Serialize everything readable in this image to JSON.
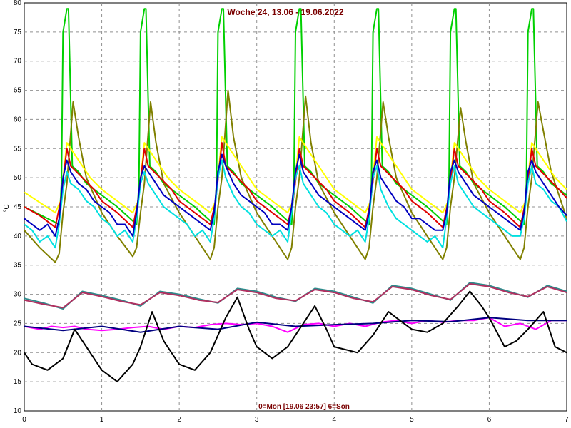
{
  "chart_data": {
    "type": "line",
    "title": "Woche 24, 13.06 - 19.06.2022",
    "xlabel": "0=Mon [19.06 23:57] 6=Son",
    "ylabel": "°C",
    "xlim": [
      0,
      7
    ],
    "ylim": [
      10,
      80
    ],
    "xticks": [
      "0",
      "1",
      "2",
      "3",
      "4",
      "5",
      "6",
      "7"
    ],
    "yticks": [
      "10",
      "15",
      "20",
      "25",
      "30",
      "35",
      "40",
      "45",
      "50",
      "55",
      "60",
      "65",
      "70",
      "75",
      "80"
    ],
    "grid": true,
    "series": [
      {
        "color": "#00d000",
        "x": [
          0,
          0.45,
          0.48,
          0.5,
          0.55,
          0.57,
          0.62,
          0.7,
          0.8,
          1.0,
          1.2,
          1.45,
          1.48,
          1.5,
          1.55,
          1.57,
          1.62,
          1.7,
          1.8,
          2.0,
          2.2,
          2.45,
          2.48,
          2.5,
          2.55,
          2.57,
          2.62,
          2.7,
          2.8,
          3.0,
          3.2,
          3.45,
          3.48,
          3.5,
          3.55,
          3.57,
          3.62,
          3.7,
          3.8,
          4.0,
          4.2,
          4.45,
          4.48,
          4.5,
          4.55,
          4.57,
          4.62,
          4.7,
          4.8,
          5.0,
          5.2,
          5.45,
          5.48,
          5.5,
          5.55,
          5.57,
          5.62,
          5.7,
          5.8,
          6.0,
          6.2,
          6.45,
          6.48,
          6.5,
          6.55,
          6.57,
          6.62,
          6.7,
          6.8,
          7.0
        ],
        "y": [
          45,
          42,
          49,
          75,
          79,
          79,
          52,
          51,
          49,
          47,
          45,
          42,
          49,
          75,
          79,
          79,
          52,
          51,
          49,
          47,
          45,
          42,
          49,
          75,
          79,
          79,
          52,
          51,
          49,
          47,
          45,
          42,
          49,
          75,
          79,
          79,
          52,
          51,
          49,
          47,
          45,
          42,
          49,
          75,
          79,
          79,
          52,
          51,
          49,
          47,
          45,
          42,
          49,
          75,
          79,
          79,
          52,
          51,
          49,
          47,
          45,
          42,
          49,
          75,
          79,
          79,
          52,
          51,
          49,
          47
        ]
      },
      {
        "color": "#808000",
        "x": [
          0,
          0.2,
          0.4,
          0.45,
          0.5,
          0.55,
          0.63,
          0.7,
          0.8,
          1.0,
          1.2,
          1.4,
          1.45,
          1.5,
          1.55,
          1.63,
          1.7,
          1.8,
          2.0,
          2.2,
          2.4,
          2.45,
          2.5,
          2.55,
          2.63,
          2.7,
          2.8,
          3.0,
          3.2,
          3.4,
          3.45,
          3.5,
          3.55,
          3.63,
          3.7,
          3.8,
          4.0,
          4.2,
          4.4,
          4.45,
          4.5,
          4.55,
          4.63,
          4.7,
          4.8,
          5.0,
          5.2,
          5.4,
          5.45,
          5.5,
          5.55,
          5.63,
          5.7,
          5.8,
          6.0,
          6.2,
          6.4,
          6.45,
          6.5,
          6.55,
          6.63,
          6.7,
          6.8,
          7.0
        ],
        "y": [
          41,
          38,
          35.5,
          37,
          44,
          49,
          63,
          57,
          50,
          44,
          40,
          36.5,
          38,
          44,
          49,
          63,
          56,
          49,
          44,
          40,
          36,
          38,
          45,
          50,
          65,
          57,
          50,
          44,
          40,
          36,
          38,
          45,
          50,
          64,
          56,
          49,
          44,
          40,
          36,
          38,
          45,
          50,
          63,
          57,
          50,
          44,
          40,
          36,
          38,
          45,
          50,
          62,
          56,
          49,
          44,
          40,
          36,
          38,
          45,
          50,
          63,
          58,
          51,
          43
        ]
      },
      {
        "color": "#ffff00",
        "x": [
          0,
          0.4,
          0.47,
          0.55,
          0.7,
          0.85,
          1.0,
          1.2,
          1.4,
          1.47,
          1.55,
          1.7,
          1.85,
          2.0,
          2.2,
          2.4,
          2.47,
          2.55,
          2.7,
          2.85,
          3.0,
          3.2,
          3.4,
          3.47,
          3.55,
          3.7,
          3.85,
          4.0,
          4.2,
          4.4,
          4.47,
          4.55,
          4.7,
          4.85,
          5.0,
          5.2,
          5.4,
          5.47,
          5.55,
          5.7,
          5.85,
          6.0,
          6.2,
          6.4,
          6.47,
          6.55,
          6.7,
          6.85,
          7.0
        ],
        "y": [
          47.5,
          44,
          46,
          56,
          53,
          50,
          48,
          46,
          44,
          46,
          56,
          53,
          50,
          48,
          46,
          44,
          46,
          57,
          54,
          51,
          48,
          46,
          44,
          46,
          57,
          54,
          51,
          48,
          46,
          44,
          46,
          57,
          54,
          51,
          48,
          46,
          44,
          46,
          56,
          53,
          50,
          48,
          46,
          44,
          46,
          56,
          53,
          50,
          48
        ]
      },
      {
        "color": "#e00000",
        "x": [
          0,
          0.2,
          0.4,
          0.47,
          0.55,
          0.6,
          0.75,
          0.9,
          1.0,
          1.2,
          1.4,
          1.47,
          1.55,
          1.6,
          1.75,
          1.9,
          2.0,
          2.2,
          2.4,
          2.47,
          2.55,
          2.6,
          2.75,
          2.9,
          3.0,
          3.2,
          3.4,
          3.47,
          3.55,
          3.6,
          3.75,
          3.9,
          4.0,
          4.2,
          4.4,
          4.47,
          4.55,
          4.6,
          4.75,
          4.9,
          5.0,
          5.2,
          5.4,
          5.47,
          5.55,
          5.6,
          5.75,
          5.9,
          6.0,
          6.2,
          6.4,
          6.47,
          6.55,
          6.6,
          6.75,
          6.9,
          7.0
        ],
        "y": [
          45,
          43.5,
          41.5,
          46,
          55,
          52,
          50,
          48,
          46,
          44,
          41.5,
          46,
          55,
          52,
          50,
          48,
          46,
          44,
          42,
          46,
          56,
          52,
          50,
          48,
          46,
          44,
          42,
          46,
          55,
          52,
          50,
          48,
          46,
          44,
          41.5,
          46,
          55,
          52,
          50,
          48,
          46,
          44,
          41.5,
          46,
          55,
          52,
          50,
          48,
          46,
          44,
          41.5,
          46,
          55,
          52,
          50,
          48,
          46.5
        ]
      },
      {
        "color": "#00e0e0",
        "x": [
          0,
          0.1,
          0.2,
          0.3,
          0.4,
          0.45,
          0.5,
          0.55,
          0.6,
          0.7,
          0.8,
          0.9,
          1.0,
          1.1,
          1.2,
          1.3,
          1.4,
          1.45,
          1.5,
          1.55,
          1.6,
          1.7,
          1.8,
          1.9,
          2.0,
          2.1,
          2.2,
          2.3,
          2.4,
          2.45,
          2.5,
          2.55,
          2.6,
          2.7,
          2.8,
          2.9,
          3.0,
          3.1,
          3.2,
          3.3,
          3.4,
          3.45,
          3.5,
          3.55,
          3.6,
          3.7,
          3.8,
          3.9,
          4.0,
          4.1,
          4.2,
          4.3,
          4.4,
          4.45,
          4.5,
          4.55,
          4.6,
          4.7,
          4.8,
          4.9,
          5.0,
          5.1,
          5.2,
          5.3,
          5.4,
          5.45,
          5.5,
          5.55,
          5.6,
          5.7,
          5.8,
          5.9,
          6.0,
          6.1,
          6.2,
          6.3,
          6.4,
          6.45,
          6.5,
          6.55,
          6.6,
          6.7,
          6.8,
          6.9,
          7.0
        ],
        "y": [
          42,
          41,
          39,
          40,
          38,
          42,
          48,
          51,
          49,
          48,
          46,
          45,
          43,
          42,
          40,
          41,
          39,
          43,
          49,
          51,
          49,
          47,
          45,
          44,
          43,
          42,
          40,
          41,
          39,
          43,
          50,
          53,
          50,
          47,
          45,
          44,
          42,
          41,
          40,
          41,
          39,
          44,
          50,
          52,
          49,
          47,
          45,
          44,
          42,
          41,
          40,
          41,
          39,
          43,
          50,
          52,
          48,
          45,
          43,
          42,
          41,
          40,
          39,
          40,
          38,
          43,
          49,
          52,
          49,
          47,
          45,
          44,
          43,
          42,
          41,
          40,
          40,
          43,
          49,
          52,
          49,
          48,
          46,
          45,
          42.5
        ]
      },
      {
        "color": "#0000c0",
        "x": [
          0,
          0.1,
          0.2,
          0.3,
          0.4,
          0.45,
          0.5,
          0.55,
          0.6,
          0.7,
          0.8,
          0.9,
          1.0,
          1.1,
          1.2,
          1.3,
          1.4,
          1.45,
          1.5,
          1.55,
          1.6,
          1.7,
          1.8,
          1.9,
          2.0,
          2.1,
          2.2,
          2.3,
          2.4,
          2.45,
          2.5,
          2.55,
          2.6,
          2.7,
          2.8,
          2.9,
          3.0,
          3.1,
          3.2,
          3.3,
          3.4,
          3.45,
          3.5,
          3.55,
          3.6,
          3.7,
          3.8,
          3.9,
          4.0,
          4.1,
          4.2,
          4.3,
          4.4,
          4.45,
          4.5,
          4.55,
          4.6,
          4.7,
          4.8,
          4.9,
          5.0,
          5.1,
          5.2,
          5.3,
          5.4,
          5.45,
          5.5,
          5.55,
          5.6,
          5.7,
          5.8,
          5.9,
          6.0,
          6.1,
          6.2,
          6.3,
          6.4,
          6.45,
          6.5,
          6.55,
          6.6,
          6.7,
          6.8,
          6.9,
          7.0
        ],
        "y": [
          43,
          42,
          41,
          42,
          40,
          43,
          50,
          53,
          51,
          49,
          48,
          46,
          45,
          44,
          42,
          42,
          40,
          44,
          50,
          52,
          51,
          49,
          47,
          46,
          45,
          44,
          43,
          42,
          41,
          44,
          51,
          54,
          52,
          49,
          47,
          46,
          45,
          44,
          42,
          42,
          41,
          45,
          51,
          54,
          51,
          49,
          47,
          46,
          45,
          44,
          43,
          42,
          41,
          44,
          51,
          53,
          50,
          48,
          46,
          45,
          43,
          43,
          42,
          41,
          41,
          44,
          51,
          53,
          51,
          49,
          47,
          46,
          45,
          44,
          43,
          42,
          41,
          44,
          51,
          53,
          51,
          49,
          47,
          45,
          43.5
        ]
      },
      {
        "color": "#2e8b8b",
        "x": [
          0,
          0.25,
          0.5,
          0.75,
          1.0,
          1.25,
          1.5,
          1.75,
          2.0,
          2.25,
          2.5,
          2.75,
          3.0,
          3.25,
          3.5,
          3.75,
          4.0,
          4.25,
          4.5,
          4.75,
          5.0,
          5.25,
          5.5,
          5.75,
          6.0,
          6.25,
          6.5,
          6.75,
          7.0
        ],
        "y": [
          29.3,
          28.5,
          27.5,
          30.5,
          29.8,
          29,
          28,
          30.5,
          30,
          29.2,
          28.5,
          31,
          30.5,
          29.5,
          28.8,
          31,
          30.5,
          29.5,
          28.5,
          31.5,
          31,
          30,
          29,
          32,
          31.5,
          30.5,
          29.5,
          31.5,
          30.5
        ]
      },
      {
        "color": "#b03060",
        "x": [
          0,
          0.25,
          0.5,
          0.75,
          1.0,
          1.25,
          1.5,
          1.75,
          2.0,
          2.25,
          2.5,
          2.75,
          3.0,
          3.25,
          3.5,
          3.75,
          4.0,
          4.25,
          4.5,
          4.75,
          5.0,
          5.25,
          5.5,
          5.75,
          6.0,
          6.25,
          6.5,
          6.75,
          7.0
        ],
        "y": [
          29,
          28.3,
          27.7,
          30.3,
          29.6,
          28.8,
          28.2,
          30.3,
          29.8,
          29,
          28.6,
          30.8,
          30.3,
          29.3,
          28.9,
          30.8,
          30.3,
          29.3,
          28.7,
          31.3,
          30.8,
          29.8,
          29.1,
          31.8,
          31.3,
          30.3,
          29.6,
          31.3,
          30.3
        ]
      },
      {
        "color": "#ff00ff",
        "x": [
          0,
          0.2,
          0.35,
          0.5,
          0.65,
          0.8,
          1.0,
          1.2,
          1.4,
          1.6,
          1.8,
          2.0,
          2.2,
          2.4,
          2.6,
          2.8,
          3.0,
          3.2,
          3.4,
          3.6,
          3.8,
          4.0,
          4.2,
          4.4,
          4.6,
          4.8,
          5.0,
          5.2,
          5.4,
          5.6,
          5.8,
          6.0,
          6.2,
          6.4,
          6.6,
          6.8,
          7.0
        ],
        "y": [
          24.5,
          24,
          24.5,
          24.3,
          24.5,
          24,
          23.8,
          24,
          24.3,
          24.5,
          24,
          24.5,
          24.3,
          24.8,
          25,
          24.8,
          25,
          24.5,
          23.5,
          24.8,
          25,
          24.5,
          25,
          24.5,
          25.2,
          25.5,
          25,
          25.5,
          25.2,
          25.5,
          25.5,
          26,
          24.5,
          25,
          24,
          25.5,
          25.5
        ]
      },
      {
        "color": "#000080",
        "x": [
          0,
          0.5,
          1.0,
          1.5,
          2.0,
          2.5,
          3.0,
          3.5,
          4.0,
          4.5,
          5.0,
          5.5,
          6.0,
          6.5,
          7.0
        ],
        "y": [
          24.5,
          23.8,
          24.5,
          23.5,
          24.5,
          24,
          25.2,
          24.5,
          24.8,
          25,
          25.5,
          25.3,
          26,
          25.5,
          25.5
        ]
      },
      {
        "color": "#000000",
        "x": [
          0,
          0.1,
          0.3,
          0.5,
          0.65,
          0.8,
          1.0,
          1.2,
          1.4,
          1.5,
          1.65,
          1.8,
          2.0,
          2.2,
          2.4,
          2.6,
          2.75,
          2.9,
          3.0,
          3.2,
          3.4,
          3.6,
          3.75,
          3.9,
          4.0,
          4.3,
          4.5,
          4.7,
          4.8,
          5.0,
          5.2,
          5.4,
          5.6,
          5.75,
          5.9,
          6.0,
          6.2,
          6.35,
          6.5,
          6.7,
          6.85,
          7.0
        ],
        "y": [
          20,
          18,
          17,
          19,
          24,
          21,
          17,
          15,
          18,
          21,
          27,
          22,
          18,
          17,
          20,
          26,
          29.5,
          24,
          21,
          19,
          21,
          25,
          28,
          24,
          21,
          20,
          23,
          27,
          26,
          24,
          23.5,
          25,
          28,
          30.5,
          28,
          26,
          21,
          22,
          24,
          27,
          21,
          20
        ]
      }
    ]
  }
}
